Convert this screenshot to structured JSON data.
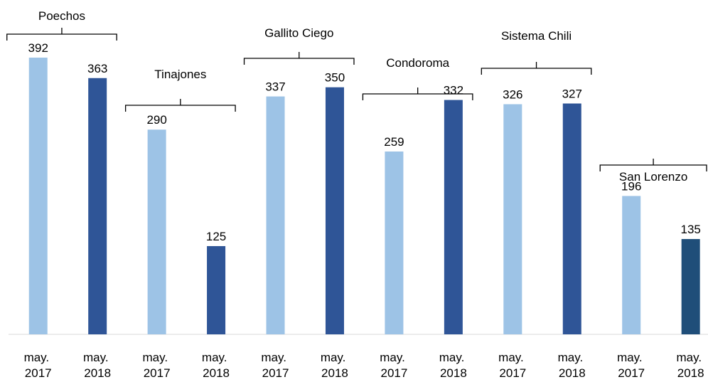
{
  "chart_data": {
    "type": "bar",
    "groups": [
      "Poechos",
      "Tinajones",
      "Gallito Ciego",
      "Condoroma",
      "Sistema Chili",
      "San Lorenzo"
    ],
    "categories": [
      "may. 2017",
      "may. 2018",
      "may. 2017",
      "may. 2018",
      "may. 2017",
      "may. 2018",
      "may. 2017",
      "may. 2018",
      "may. 2017",
      "may. 2018",
      "may. 2017",
      "may. 2018"
    ],
    "values": [
      392,
      363,
      290,
      125,
      337,
      350,
      259,
      332,
      326,
      327,
      196,
      135
    ],
    "colors": [
      "#9dc3e6",
      "#2f5597",
      "#9dc3e6",
      "#2f5597",
      "#9dc3e6",
      "#2f5597",
      "#9dc3e6",
      "#2f5597",
      "#9dc3e6",
      "#2f5597",
      "#9dc3e6",
      "#1f4e79"
    ],
    "ylim": [
      0,
      400
    ]
  }
}
